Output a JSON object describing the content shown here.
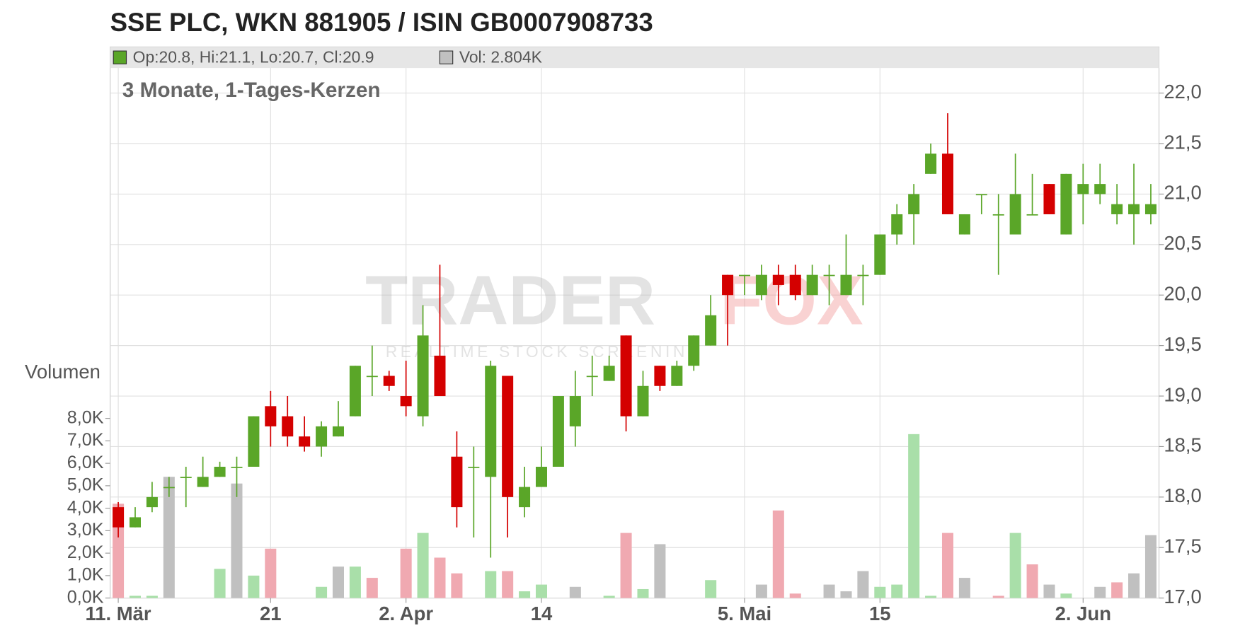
{
  "chart_data": {
    "type": "candlestick",
    "title": "SSE PLC, WKN 881905 / ISIN GB0007908733",
    "subtitle": "3 Monate, 1-Tages-Kerzen",
    "legend": {
      "ohlc": "Op:20.8, Hi:21.1, Lo:20.7, Cl:20.9",
      "volume": "Vol: 2.804K"
    },
    "watermark": {
      "brand_left": "TRADER",
      "brand_right": "FOX",
      "tagline": "REALTIME STOCK SCREENING"
    },
    "volume_label": "Volumen",
    "up_color": "#5aa628",
    "down_color": "#d40000",
    "grid": true,
    "categories": [
      "11. Mär",
      null,
      null,
      null,
      null,
      null,
      null,
      null,
      null,
      "21",
      null,
      null,
      null,
      null,
      null,
      null,
      null,
      "2. Apr",
      null,
      null,
      null,
      null,
      null,
      null,
      null,
      "14",
      null,
      null,
      null,
      null,
      null,
      null,
      null,
      null,
      null,
      null,
      null,
      "5. Mai",
      null,
      null,
      null,
      null,
      null,
      null,
      null,
      "15",
      null,
      null,
      null,
      null,
      null,
      null,
      null,
      null,
      null,
      null,
      null,
      "2. Jun",
      null,
      null,
      null,
      null
    ],
    "open": [
      17.9,
      17.7,
      17.9,
      18.1,
      18.2,
      18.1,
      18.2,
      18.3,
      18.3,
      18.9,
      18.8,
      18.6,
      18.5,
      18.6,
      18.8,
      19.2,
      19.2,
      19.0,
      18.8,
      19.4,
      18.4,
      18.3,
      18.2,
      19.2,
      17.9,
      18.1,
      18.3,
      18.7,
      19.2,
      19.15,
      19.6,
      18.8,
      19.3,
      19.1,
      19.3,
      19.5,
      20.2,
      20.2,
      20.0,
      20.2,
      20.2,
      20.0,
      20.2,
      20.0,
      20.2,
      20.2,
      20.6,
      20.8,
      21.2,
      21.4,
      20.6,
      21.0,
      20.8,
      20.6,
      20.8,
      21.1,
      20.6,
      21.0,
      21.0,
      20.8,
      20.8,
      20.8
    ],
    "high": [
      17.95,
      17.9,
      18.15,
      18.2,
      18.3,
      18.4,
      18.35,
      18.4,
      18.8,
      19.05,
      19.0,
      18.8,
      18.75,
      18.95,
      19.3,
      19.5,
      19.25,
      19.35,
      19.9,
      20.3,
      18.65,
      18.5,
      19.35,
      19.2,
      18.3,
      18.5,
      19.0,
      19.25,
      19.4,
      19.4,
      19.6,
      19.25,
      19.3,
      19.35,
      19.6,
      20.0,
      20.2,
      20.2,
      20.3,
      20.3,
      20.3,
      20.3,
      20.3,
      20.6,
      20.3,
      20.6,
      20.9,
      21.1,
      21.5,
      21.8,
      20.8,
      21.0,
      21.0,
      21.4,
      21.2,
      21.1,
      21.2,
      21.3,
      21.3,
      21.1,
      21.3,
      21.1
    ],
    "low": [
      17.6,
      17.7,
      17.85,
      18.0,
      17.9,
      18.1,
      18.2,
      18.0,
      18.3,
      18.5,
      18.5,
      18.45,
      18.4,
      18.6,
      18.8,
      19.0,
      19.05,
      18.8,
      18.7,
      19.0,
      17.7,
      17.6,
      17.4,
      17.6,
      17.8,
      18.1,
      18.3,
      18.5,
      19.0,
      19.15,
      18.65,
      18.8,
      19.05,
      19.1,
      19.25,
      19.5,
      19.5,
      20.0,
      19.95,
      19.9,
      19.95,
      20.0,
      19.9,
      20.0,
      19.9,
      20.2,
      20.5,
      20.5,
      21.2,
      20.8,
      20.6,
      20.8,
      20.2,
      20.6,
      20.8,
      20.8,
      20.6,
      20.7,
      20.9,
      20.7,
      20.5,
      20.7
    ],
    "close": [
      17.7,
      17.8,
      18.0,
      18.1,
      18.2,
      18.2,
      18.3,
      18.3,
      18.8,
      18.7,
      18.6,
      18.5,
      18.7,
      18.7,
      19.3,
      19.2,
      19.1,
      18.9,
      19.6,
      19.0,
      17.9,
      18.3,
      19.3,
      18.0,
      18.1,
      18.3,
      19.0,
      19.0,
      19.2,
      19.3,
      18.8,
      19.1,
      19.1,
      19.3,
      19.6,
      19.8,
      20.0,
      20.2,
      20.2,
      20.1,
      20.0,
      20.2,
      20.2,
      20.2,
      20.2,
      20.6,
      20.8,
      21.0,
      21.4,
      20.8,
      20.8,
      21.0,
      20.8,
      21.0,
      20.8,
      20.8,
      21.2,
      21.1,
      21.1,
      20.9,
      20.9,
      20.9
    ],
    "volume": [
      4200,
      100,
      100,
      5400,
      0,
      0,
      1300,
      5100,
      1000,
      2200,
      0,
      0,
      500,
      1400,
      1400,
      900,
      0,
      2200,
      2900,
      1800,
      1100,
      0,
      1200,
      1200,
      300,
      600,
      0,
      500,
      0,
      100,
      2900,
      400,
      2400,
      0,
      0,
      800,
      0,
      0,
      600,
      3900,
      200,
      0,
      600,
      300,
      1200,
      500,
      600,
      7300,
      100,
      2900,
      900,
      0,
      100,
      2900,
      1500,
      600,
      200,
      0,
      500,
      700,
      1100,
      2800
    ],
    "volume_colors": [
      "#f0a9b1",
      "#a9dfa9",
      "#a9dfa9",
      "#c0c0c0",
      "#c0c0c0",
      "#c0c0c0",
      "#a9dfa9",
      "#c0c0c0",
      "#a9dfa9",
      "#f0a9b1",
      "#c0c0c0",
      "#c0c0c0",
      "#a9dfa9",
      "#c0c0c0",
      "#a9dfa9",
      "#f0a9b1",
      "#c0c0c0",
      "#f0a9b1",
      "#a9dfa9",
      "#f0a9b1",
      "#f0a9b1",
      "#c0c0c0",
      "#a9dfa9",
      "#f0a9b1",
      "#a9dfa9",
      "#a9dfa9",
      "#c0c0c0",
      "#c0c0c0",
      "#c0c0c0",
      "#a9dfa9",
      "#f0a9b1",
      "#a9dfa9",
      "#c0c0c0",
      "#c0c0c0",
      "#c0c0c0",
      "#a9dfa9",
      "#c0c0c0",
      "#c0c0c0",
      "#c0c0c0",
      "#f0a9b1",
      "#f0a9b1",
      "#c0c0c0",
      "#c0c0c0",
      "#c0c0c0",
      "#c0c0c0",
      "#a9dfa9",
      "#a9dfa9",
      "#a9dfa9",
      "#a9dfa9",
      "#f0a9b1",
      "#c0c0c0",
      "#c0c0c0",
      "#f0a9b1",
      "#a9dfa9",
      "#f0a9b1",
      "#c0c0c0",
      "#a9dfa9",
      "#c0c0c0",
      "#c0c0c0",
      "#f0a9b1",
      "#c0c0c0",
      "#c0c0c0"
    ],
    "ylim": [
      17,
      22
    ],
    "yticks": [
      {
        "value": 17,
        "label": "17,0"
      },
      {
        "value": 17.5,
        "label": "17,5"
      },
      {
        "value": 18,
        "label": "18,0"
      },
      {
        "value": 18.5,
        "label": "18,5"
      },
      {
        "value": 19,
        "label": "19,0"
      },
      {
        "value": 19.5,
        "label": "19,5"
      },
      {
        "value": 20,
        "label": "20,0"
      },
      {
        "value": 20.5,
        "label": "20,5"
      },
      {
        "value": 21,
        "label": "21,0"
      },
      {
        "value": 21.5,
        "label": "21,5"
      },
      {
        "value": 22,
        "label": "22,0"
      }
    ],
    "volume_lim": [
      0,
      8000
    ],
    "volume_ticks": [
      {
        "value": 0,
        "label": "0,0K"
      },
      {
        "value": 1000,
        "label": "1,0K"
      },
      {
        "value": 2000,
        "label": "2,0K"
      },
      {
        "value": 3000,
        "label": "3,0K"
      },
      {
        "value": 4000,
        "label": "4,0K"
      },
      {
        "value": 5000,
        "label": "5,0K"
      },
      {
        "value": 6000,
        "label": "6,0K"
      },
      {
        "value": 7000,
        "label": "7,0K"
      },
      {
        "value": 8000,
        "label": "8,0K"
      }
    ]
  }
}
